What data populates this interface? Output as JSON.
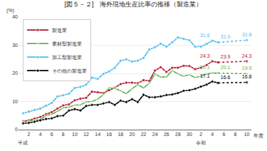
{
  "chart_data": {
    "type": "line",
    "title": "[図５－２]　海外現地生産比率の推移（製造業）",
    "y_label": "(%)",
    "annotations": [
      "平成",
      "令和",
      "年度"
    ],
    "categories": [
      null,
      "2",
      null,
      "4",
      null,
      "6",
      null,
      "8",
      null,
      "10",
      null,
      "12",
      null,
      "14",
      null,
      "16",
      null,
      "18",
      null,
      "20",
      null,
      "22",
      null,
      "24",
      null,
      "26",
      null,
      "28",
      null,
      "30",
      null,
      "2",
      null,
      "4",
      null,
      "6",
      null,
      "8",
      null,
      "10"
    ],
    "series": [
      {
        "name": "製造業",
        "color": "#b5122e",
        "marker": "square",
        "values": [
          3.0,
          3.3,
          3.9,
          4.5,
          5.5,
          6.2,
          7.5,
          8.6,
          9.0,
          10.4,
          11.0,
          11.3,
          13.5,
          13.3,
          13.0,
          14.0,
          14.9,
          16.2,
          16.7,
          16.7,
          16.5,
          17.6,
          17.3,
          21.0,
          22.2,
          20.5,
          22.0,
          22.0,
          22.7,
          22.6,
          21.5,
          22.0,
          23.0,
          24.3,
          23.9,
          null,
          null,
          null,
          null,
          24.3
        ],
        "value_labels": [
          null,
          null,
          null,
          null,
          null,
          null,
          null,
          null,
          null,
          null,
          null,
          null,
          null,
          null,
          null,
          null,
          null,
          null,
          null,
          null,
          null,
          null,
          null,
          null,
          null,
          null,
          null,
          null,
          null,
          null,
          null,
          null,
          null,
          "24.3",
          "23.9",
          null,
          null,
          null,
          null,
          "24.3"
        ]
      },
      {
        "name": "素材型製造業",
        "color": "#5fb049",
        "marker": "triangle-up",
        "values": [
          2.8,
          3.0,
          3.3,
          3.6,
          5.0,
          5.5,
          6.5,
          7.8,
          8.0,
          8.7,
          8.8,
          9.8,
          10.0,
          10.8,
          12.5,
          14.8,
          14.7,
          13.8,
          12.8,
          14.5,
          16.0,
          14.8,
          16.5,
          19.8,
          18.7,
          18.7,
          21.0,
          19.8,
          19.0,
          19.5,
          18.5,
          19.0,
          19.8,
          20.1,
          20.1,
          null,
          null,
          null,
          null,
          19.9
        ],
        "value_labels": [
          null,
          null,
          null,
          null,
          null,
          null,
          null,
          null,
          null,
          null,
          null,
          null,
          null,
          null,
          null,
          null,
          null,
          null,
          null,
          null,
          null,
          null,
          null,
          null,
          null,
          null,
          null,
          null,
          null,
          null,
          null,
          null,
          null,
          "20.1",
          "20.1",
          null,
          null,
          null,
          null,
          "19.9"
        ]
      },
      {
        "name": "加工型製造業",
        "color": "#4fbfec",
        "marker": "square",
        "values": [
          5.8,
          6.4,
          7.0,
          7.5,
          8.5,
          9.5,
          11.8,
          12.2,
          12.8,
          14.8,
          15.2,
          16.0,
          18.5,
          18.0,
          19.8,
          20.7,
          22.0,
          24.5,
          25.0,
          24.2,
          24.5,
          25.5,
          28.5,
          29.3,
          30.5,
          29.5,
          31.0,
          32.8,
          32.3,
          31.8,
          29.5,
          29.5,
          30.5,
          31.6,
          31.0,
          null,
          null,
          null,
          null,
          31.8
        ],
        "value_labels": [
          null,
          null,
          null,
          null,
          null,
          null,
          null,
          null,
          null,
          null,
          null,
          null,
          null,
          null,
          null,
          null,
          null,
          null,
          null,
          null,
          null,
          null,
          null,
          null,
          null,
          null,
          null,
          null,
          null,
          null,
          null,
          null,
          null,
          "31.6",
          "31.0",
          null,
          null,
          null,
          null,
          "31.8"
        ]
      },
      {
        "name": "その他の製造業",
        "color": "#000000",
        "marker": "diamond",
        "values": [
          2.2,
          2.4,
          2.8,
          3.3,
          3.8,
          4.0,
          4.8,
          5.0,
          6.8,
          7.3,
          6.8,
          8.4,
          8.8,
          8.8,
          9.3,
          9.8,
          8.8,
          10.3,
          9.8,
          10.8,
          9.8,
          12.4,
          11.5,
          11.5,
          11.8,
          12.3,
          12.5,
          13.0,
          13.8,
          14.0,
          14.5,
          15.3,
          16.0,
          17.1,
          16.6,
          null,
          null,
          null,
          null,
          16.8
        ],
        "value_labels": [
          null,
          null,
          null,
          null,
          null,
          null,
          null,
          null,
          null,
          null,
          null,
          null,
          null,
          null,
          null,
          null,
          null,
          null,
          null,
          null,
          null,
          null,
          null,
          null,
          null,
          null,
          null,
          null,
          null,
          null,
          null,
          null,
          null,
          "17.1",
          "16.6",
          null,
          null,
          null,
          null,
          "16.8"
        ]
      }
    ],
    "ylim": [
      0,
      40
    ],
    "yticks": [
      0,
      10,
      20,
      30,
      40
    ],
    "grid": true,
    "legend": "upper left"
  }
}
